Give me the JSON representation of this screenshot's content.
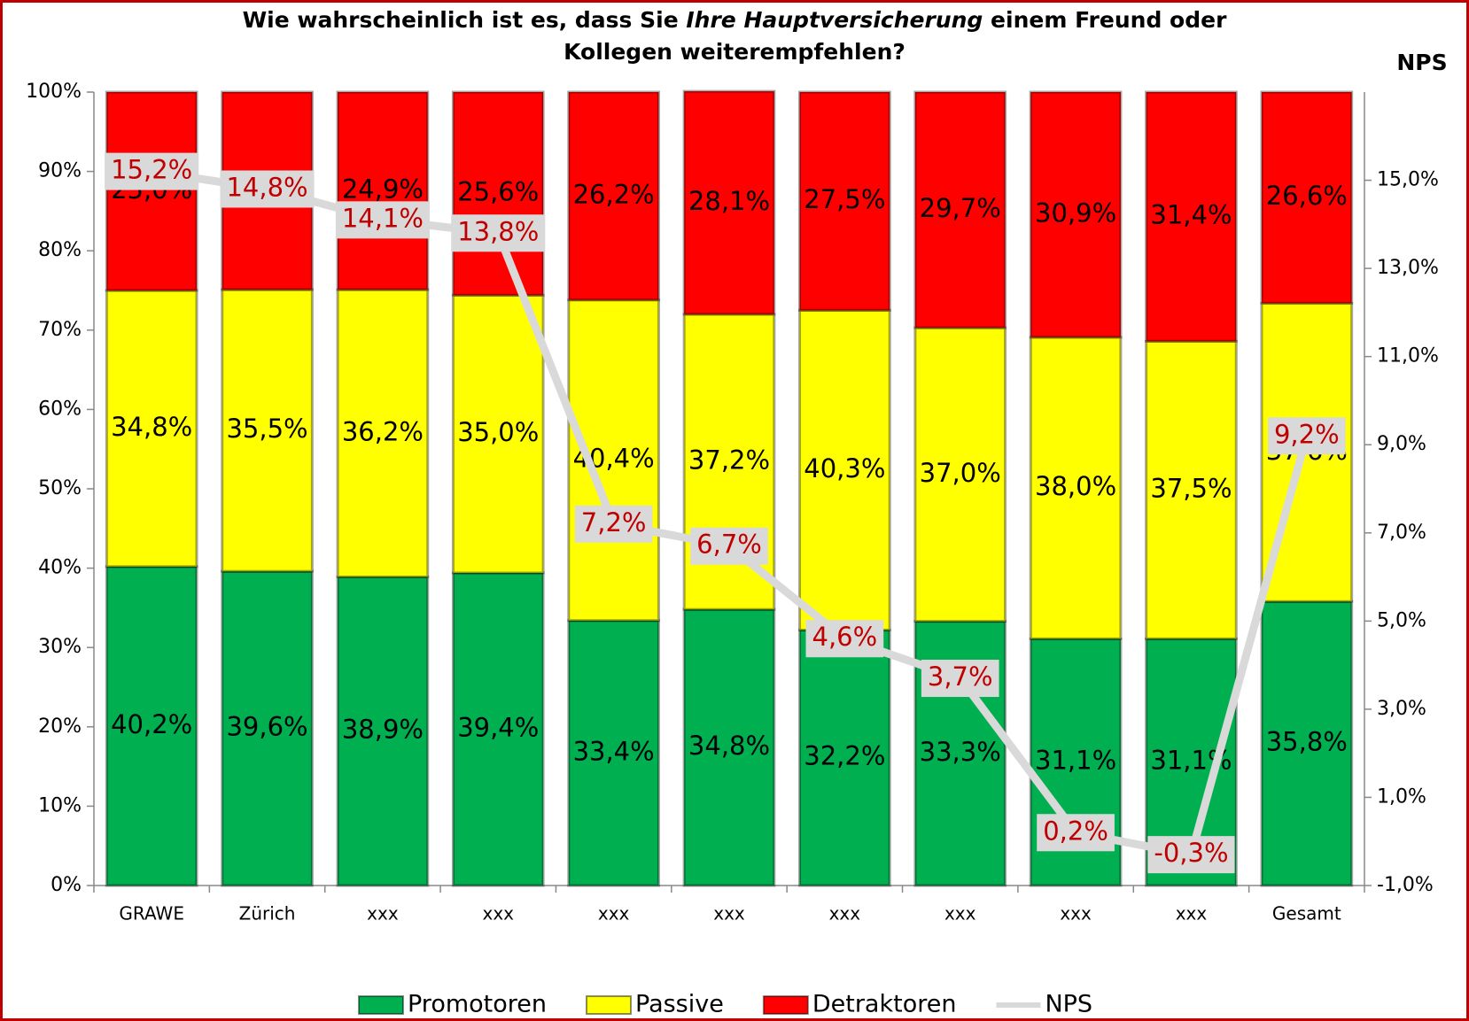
{
  "chart_data": {
    "type": "stacked_bar_line",
    "title": [
      "Wie wahrscheinlich ist es, dass Sie",
      "Ihre Hauptversicherung",
      "einem Freund oder",
      "Kollegen weiterempfehlen?"
    ],
    "y2label": "NPS",
    "categories": [
      "GRAWE",
      "Zürich",
      "xxx",
      "xxx",
      "xxx",
      "xxx",
      "xxx",
      "xxx",
      "xxx",
      "xxx",
      "Gesamt"
    ],
    "series": [
      {
        "name": "Promotoren",
        "color": "#00b050",
        "values": [
          40.2,
          39.6,
          38.9,
          39.4,
          33.4,
          34.8,
          32.2,
          33.3,
          31.1,
          31.1,
          35.8
        ],
        "value_labels": [
          "40,2%",
          "39,6%",
          "38,9%",
          "39,4%",
          "33,4%",
          "34,8%",
          "32,2%",
          "33,3%",
          "31,1%",
          "31,1%",
          "35,8%"
        ]
      },
      {
        "name": "Passive",
        "color": "#ffff00",
        "values": [
          34.8,
          35.5,
          36.2,
          35.0,
          40.4,
          37.2,
          40.3,
          37.0,
          38.0,
          37.5,
          37.6
        ],
        "value_labels": [
          "34,8%",
          "35,5%",
          "36,2%",
          "35,0%",
          "40,4%",
          "37,2%",
          "40,3%",
          "37,0%",
          "38,0%",
          "37,5%",
          "37,6%"
        ]
      },
      {
        "name": "Detraktoren",
        "color": "#ff0000",
        "values": [
          25.0,
          24.9,
          24.9,
          25.6,
          26.2,
          28.1,
          27.5,
          29.7,
          30.9,
          31.4,
          26.6
        ],
        "value_labels": [
          "25,0%",
          "24,9%",
          "24,9%",
          "25,6%",
          "26,2%",
          "28,1%",
          "27,5%",
          "29,7%",
          "30,9%",
          "31,4%",
          "26,6%"
        ]
      },
      {
        "name": "NPS",
        "color": "#d9d9d9",
        "axis": "y2",
        "values": [
          15.2,
          14.8,
          14.1,
          13.8,
          7.2,
          6.7,
          4.6,
          3.7,
          0.2,
          -0.3,
          9.2
        ],
        "value_labels": [
          "15,2%",
          "14,8%",
          "14,1%",
          "13,8%",
          "7,2%",
          "6,7%",
          "4,6%",
          "3,7%",
          "0,2%",
          "-0,3%",
          "9,2%"
        ]
      }
    ],
    "ylim": [
      0,
      100
    ],
    "yticks": [
      {
        "value": 0,
        "label": "0%"
      },
      {
        "value": 10,
        "label": "10%"
      },
      {
        "value": 20,
        "label": "20%"
      },
      {
        "value": 30,
        "label": "30%"
      },
      {
        "value": 40,
        "label": "40%"
      },
      {
        "value": 50,
        "label": "50%"
      },
      {
        "value": 60,
        "label": "60%"
      },
      {
        "value": 70,
        "label": "70%"
      },
      {
        "value": 80,
        "label": "80%"
      },
      {
        "value": 90,
        "label": "90%"
      },
      {
        "value": 100,
        "label": "100%"
      }
    ],
    "y2lim": [
      -1,
      17
    ],
    "y2ticks": [
      {
        "value": -1,
        "label": "-1,0%"
      },
      {
        "value": 1,
        "label": "1,0%"
      },
      {
        "value": 3,
        "label": "3,0%"
      },
      {
        "value": 5,
        "label": "5,0%"
      },
      {
        "value": 7,
        "label": "7,0%"
      },
      {
        "value": 9,
        "label": "9,0%"
      },
      {
        "value": 11,
        "label": "11,0%"
      },
      {
        "value": 13,
        "label": "13,0%"
      },
      {
        "value": 15,
        "label": "15,0%"
      }
    ]
  }
}
